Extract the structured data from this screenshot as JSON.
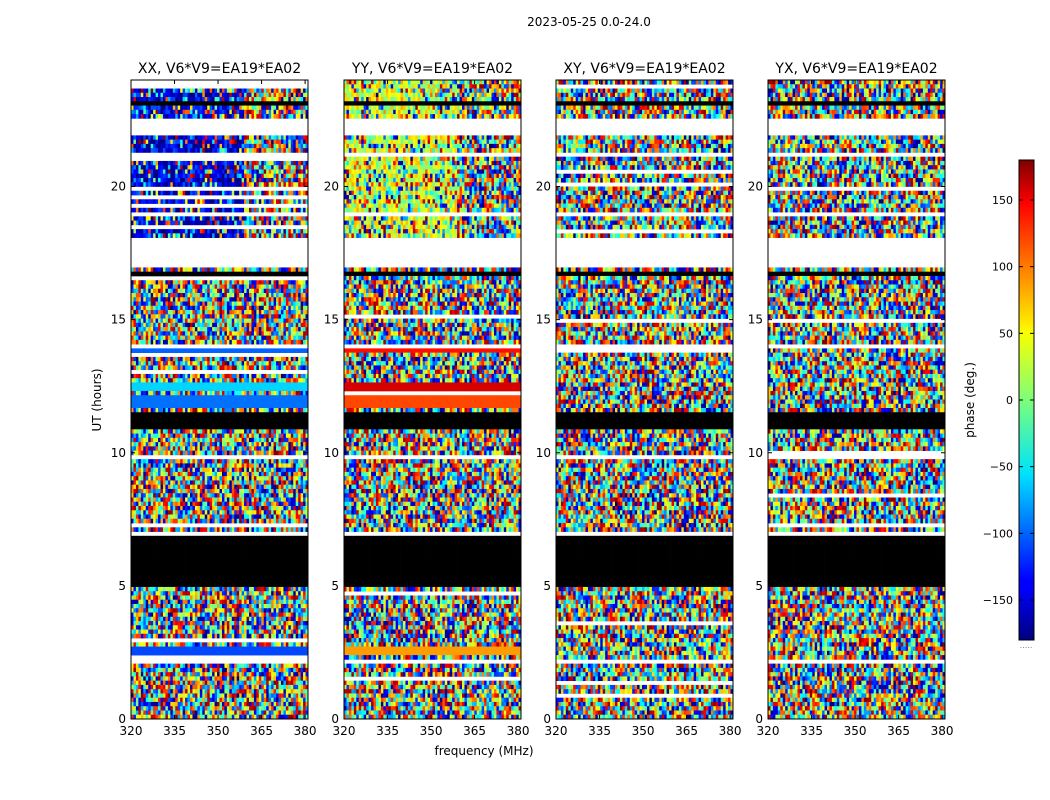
{
  "figure": {
    "suptitle": "2023-05-25 0.0-24.0",
    "colorbar": {
      "label": "phase (deg.)",
      "range": [
        -180,
        180
      ],
      "ticks": [
        150,
        100,
        50,
        0,
        -50,
        -100,
        -150
      ],
      "colormap": "jet"
    }
  },
  "chart_data": [
    {
      "type": "heatmap",
      "title": "XX, V6*V9=EA19*EA02",
      "xlabel": "",
      "ylabel": "UT (hours)",
      "xlim": [
        320,
        381
      ],
      "ylim": [
        0,
        24
      ],
      "xticks": [
        320,
        335,
        350,
        365,
        380
      ],
      "yticks": [
        0,
        5,
        10,
        15,
        20
      ],
      "value_label": "phase (deg.)"
    },
    {
      "type": "heatmap",
      "title": "YY, V6*V9=EA19*EA02",
      "xlabel": "frequency (MHz)",
      "ylabel": "",
      "xlim": [
        320,
        381
      ],
      "ylim": [
        0,
        24
      ],
      "xticks": [
        320,
        335,
        350,
        365,
        380
      ],
      "yticks": [
        0,
        5,
        10,
        15,
        20
      ],
      "value_label": "phase (deg.)"
    },
    {
      "type": "heatmap",
      "title": "XY, V6*V9=EA19*EA02",
      "xlabel": "",
      "ylabel": "",
      "xlim": [
        320,
        381
      ],
      "ylim": [
        0,
        24
      ],
      "xticks": [
        320,
        335,
        350,
        365,
        380
      ],
      "yticks": [
        0,
        5,
        10,
        15,
        20
      ],
      "value_label": "phase (deg.)"
    },
    {
      "type": "heatmap",
      "title": "YX, V6*V9=EA19*EA02",
      "xlabel": "",
      "ylabel": "",
      "xlim": [
        320,
        381
      ],
      "ylim": [
        0,
        24
      ],
      "xticks": [
        320,
        335,
        350,
        365,
        380
      ],
      "yticks": [
        0,
        5,
        10,
        15,
        20
      ],
      "value_label": "phase (deg.)"
    }
  ],
  "data_features": {
    "gaps_hours": [
      [
        22.0,
        22.5
      ],
      [
        17.0,
        18.05
      ],
      [
        18.9,
        19.0
      ],
      [
        21.2,
        21.3
      ],
      [
        9.7,
        10.0
      ],
      [
        7.5,
        7.6
      ],
      [
        6.9,
        7.0
      ],
      [
        2.1,
        2.2
      ],
      [
        4.6,
        4.7
      ],
      [
        14.0,
        14.1
      ]
    ],
    "dark_bands_hours": [
      [
        16.6,
        16.75
      ],
      [
        11.1,
        11.5
      ],
      [
        10.95,
        11.0
      ],
      [
        5.0,
        6.9
      ],
      [
        23.1,
        23.2
      ]
    ],
    "coherent_bands": [
      {
        "panel": 0,
        "t": [
          2.45,
          2.65
        ],
        "phase": -110
      },
      {
        "panel": 0,
        "t": [
          13.7,
          13.95
        ],
        "phase": -100
      },
      {
        "panel": 0,
        "t": [
          12.3,
          12.6
        ],
        "phase": -60
      },
      {
        "panel": 0,
        "t": [
          11.6,
          12.1
        ],
        "phase": -95
      },
      {
        "panel": 1,
        "t": [
          2.45,
          2.65
        ],
        "phase": 80
      },
      {
        "panel": 1,
        "t": [
          13.7,
          13.95
        ],
        "phase": 130
      },
      {
        "panel": 1,
        "t": [
          12.3,
          12.6
        ],
        "phase": 150
      },
      {
        "panel": 1,
        "t": [
          11.6,
          12.1
        ],
        "phase": 110
      }
    ],
    "upper_block_hours": [
      18.05,
      24.0
    ],
    "upper_block_phase": [
      -150,
      30,
      0,
      0
    ]
  }
}
